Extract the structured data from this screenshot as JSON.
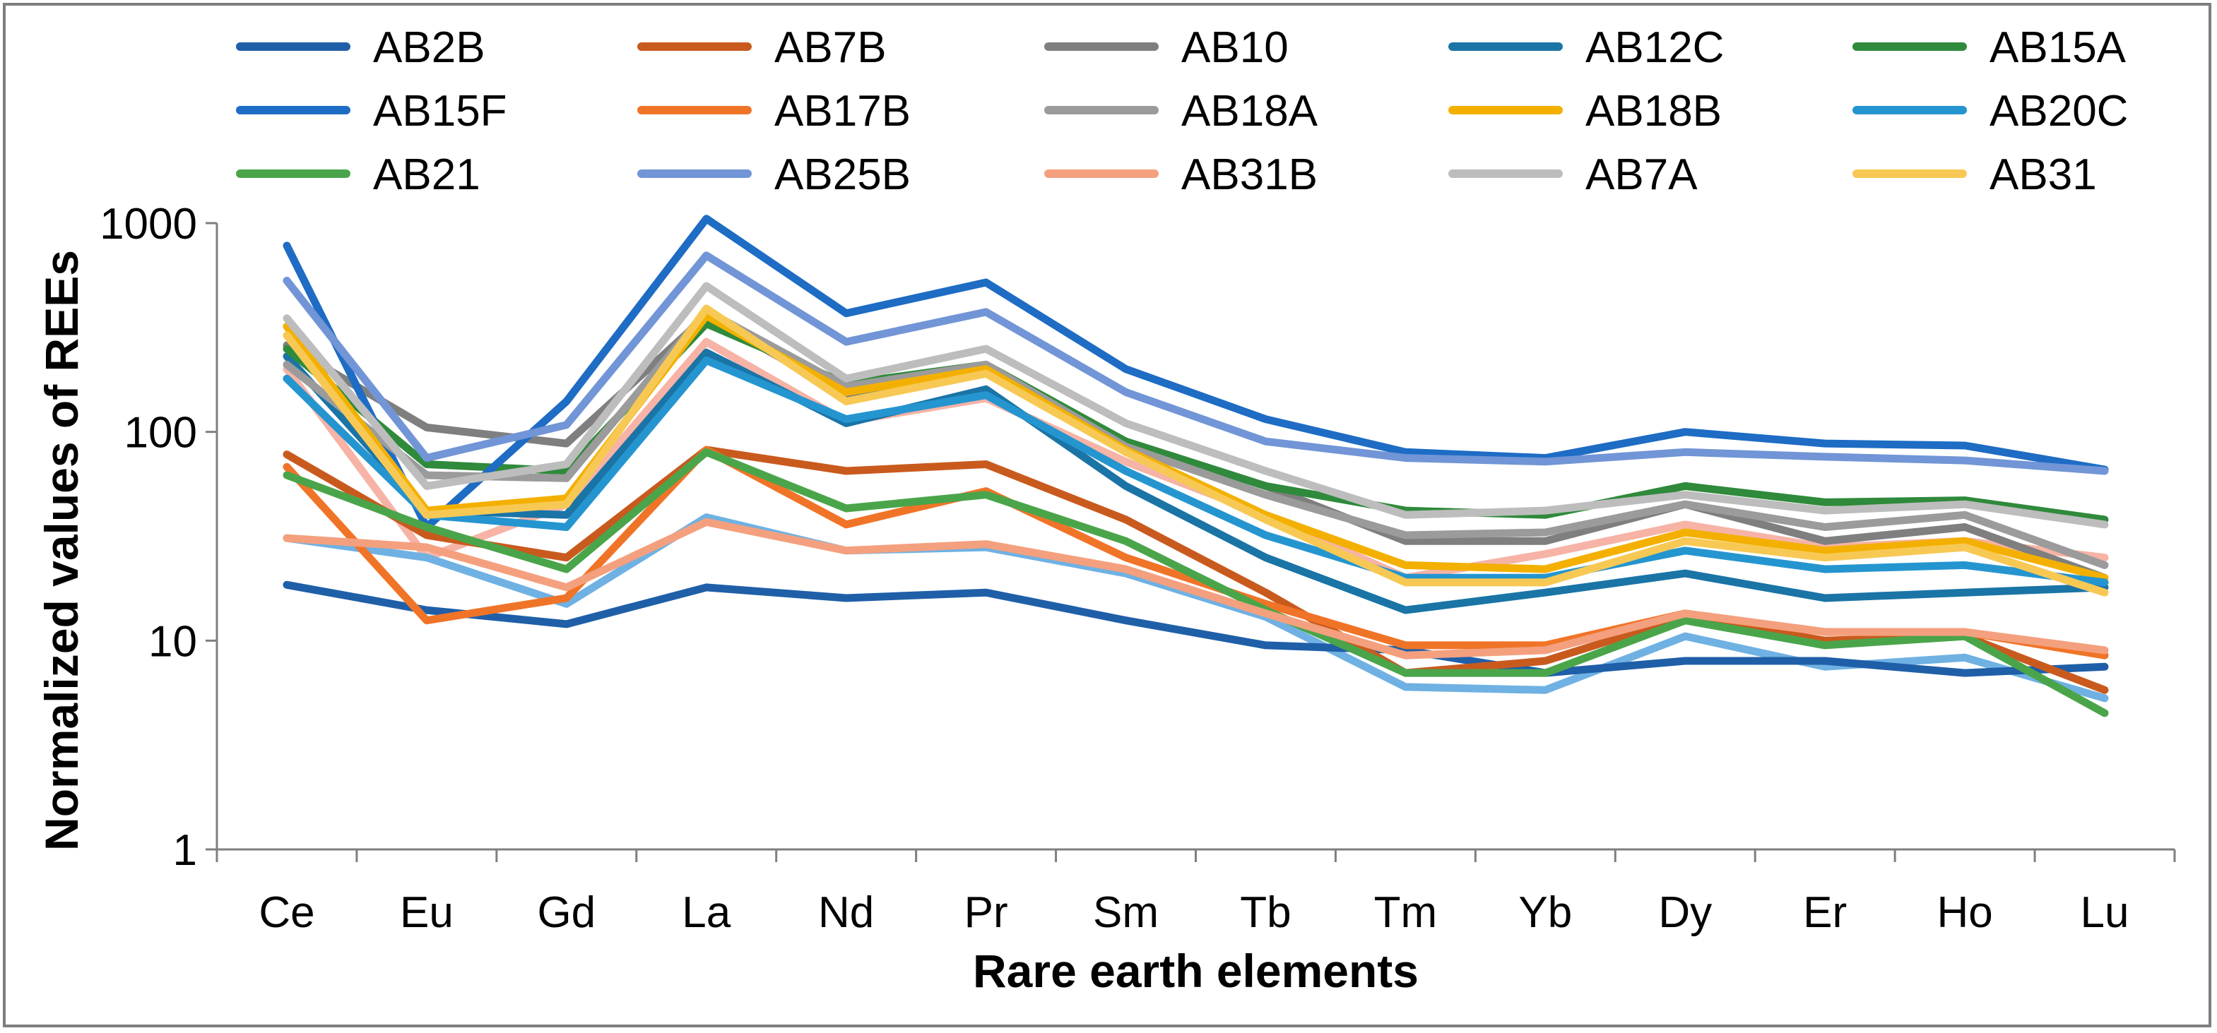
{
  "chart_data": {
    "type": "line",
    "title": "",
    "xlabel": "Rare earth elements",
    "ylabel": "Normalized values of REEs",
    "yscale": "log",
    "ylim": [
      1,
      1000
    ],
    "yticks": [
      "1",
      "10",
      "100",
      "1000"
    ],
    "categories": [
      "Ce",
      "Eu",
      "Gd",
      "La",
      "Nd",
      "Pr",
      "Sm",
      "Tb",
      "Tm",
      "Yb",
      "Dy",
      "Er",
      "Ho",
      "Lu"
    ],
    "legend_position": "top",
    "series": [
      {
        "name": "AB2B",
        "color": "#1f5fa8",
        "values": [
          18.5,
          14,
          12,
          18,
          16,
          17,
          12.5,
          9.5,
          9,
          7,
          8,
          8,
          7,
          7.5
        ]
      },
      {
        "name": "AB7B",
        "color": "#c95a1e",
        "values": [
          78,
          32,
          25,
          82,
          65,
          70,
          38,
          17,
          7,
          8,
          13,
          10,
          10.5,
          5.8
        ]
      },
      {
        "name": "AB10",
        "color": "#7f7f7f",
        "values": [
          260,
          105,
          88,
          360,
          150,
          200,
          90,
          55,
          30,
          30,
          45,
          30,
          35,
          20
        ]
      },
      {
        "name": "AB12C",
        "color": "#1a74a6",
        "values": [
          230,
          42,
          40,
          240,
          110,
          160,
          55,
          25,
          14,
          17,
          21,
          16,
          17,
          18
        ]
      },
      {
        "name": "AB15A",
        "color": "#2f8a3b",
        "values": [
          250,
          70,
          65,
          330,
          170,
          210,
          90,
          55,
          42,
          40,
          55,
          46,
          47,
          38
        ]
      },
      {
        "name": "AB15F",
        "color": "#1e6cc4",
        "values": [
          780,
          35,
          140,
          1050,
          370,
          520,
          200,
          115,
          80,
          75,
          100,
          88,
          86,
          66
        ]
      },
      {
        "name": "AB17B",
        "color": "#f07428",
        "values": [
          68,
          12.5,
          16,
          82,
          36,
          52,
          25,
          15,
          9.5,
          9.5,
          13.5,
          11,
          11,
          8.5
        ]
      },
      {
        "name": "AB18A",
        "color": "#9b9b9b",
        "values": [
          210,
          62,
          60,
          380,
          165,
          210,
          85,
          50,
          32,
          33,
          45,
          35,
          40,
          23
        ]
      },
      {
        "name": "AB18B",
        "color": "#f3b000",
        "values": [
          320,
          42,
          48,
          360,
          155,
          200,
          82,
          40,
          23,
          22,
          33,
          27,
          30,
          20
        ]
      },
      {
        "name": "AB20C",
        "color": "#2595d0",
        "values": [
          180,
          40,
          35,
          220,
          115,
          150,
          65,
          32,
          20,
          20,
          27,
          22,
          23,
          19
        ]
      },
      {
        "name": "AB21",
        "color": "#4aa54a",
        "values": [
          62,
          35,
          22,
          80,
          43,
          50,
          30,
          14,
          7,
          7,
          12.5,
          9.5,
          10.5,
          4.5
        ]
      },
      {
        "name": "AB25B",
        "color": "#7195d6",
        "values": [
          530,
          75,
          108,
          700,
          270,
          375,
          155,
          90,
          75,
          72,
          80,
          76,
          73,
          65
        ]
      },
      {
        "name": "AB31B",
        "color": "#f4a07e",
        "values": [
          31,
          28,
          18,
          37,
          27,
          29,
          22,
          13.5,
          8.5,
          9,
          13.5,
          11,
          11,
          9
        ]
      },
      {
        "name": "AB7A",
        "color": "#bdbdbd",
        "values": [
          350,
          55,
          70,
          500,
          180,
          250,
          110,
          65,
          40,
          42,
          50,
          42,
          45,
          36
        ]
      },
      {
        "name": "AB31",
        "color": "#f7c954",
        "values": [
          290,
          40,
          45,
          390,
          140,
          190,
          80,
          38,
          19,
          19,
          30,
          25,
          28,
          17
        ]
      }
    ],
    "extra_lines": [
      {
        "color": "#f6b3a6",
        "values": [
          200,
          25,
          45,
          270,
          112,
          145,
          72,
          40,
          20,
          26,
          36,
          28,
          30,
          25
        ]
      },
      {
        "color": "#6fb1e3",
        "values": [
          31,
          25,
          15,
          39,
          27,
          28,
          21,
          13,
          6,
          5.8,
          10.5,
          7.5,
          8.3,
          5.3
        ]
      }
    ]
  }
}
